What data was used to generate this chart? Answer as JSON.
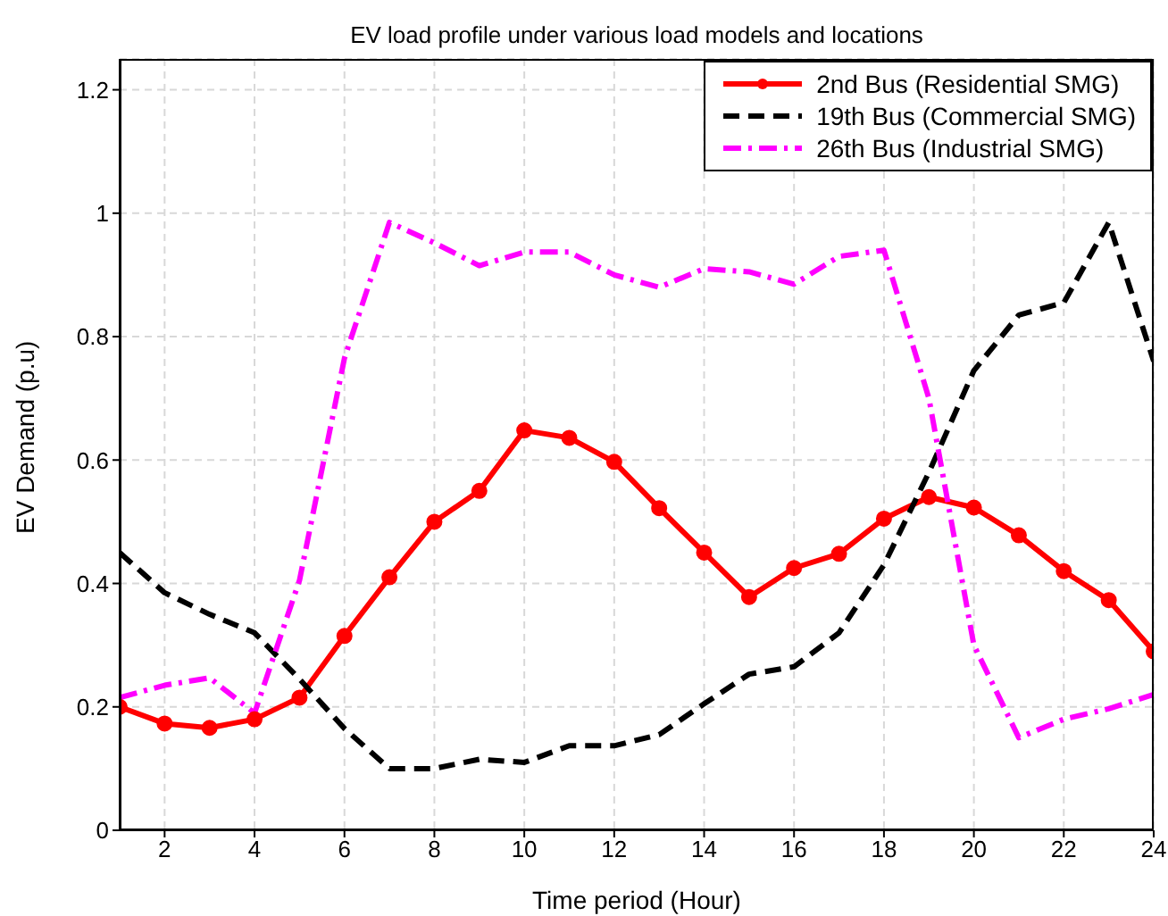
{
  "chart_data": {
    "type": "line",
    "title": "EV load profile under various load models and locations",
    "xlabel": "Time period (Hour)",
    "ylabel": "EV Demand (p.u)",
    "x": [
      1,
      2,
      3,
      4,
      5,
      6,
      7,
      8,
      9,
      10,
      11,
      12,
      13,
      14,
      15,
      16,
      17,
      18,
      19,
      20,
      21,
      22,
      23,
      24
    ],
    "series": [
      {
        "name": "2nd Bus (Residential SMG)",
        "color": "#ff0000",
        "marker": "circle",
        "line_style": "solid",
        "values": [
          0.2,
          0.173,
          0.166,
          0.18,
          0.215,
          0.315,
          0.41,
          0.5,
          0.55,
          0.648,
          0.636,
          0.597,
          0.522,
          0.45,
          0.378,
          0.425,
          0.448,
          0.505,
          0.54,
          0.523,
          0.478,
          0.42,
          0.373,
          0.29
        ]
      },
      {
        "name": "19th Bus (Commercial SMG)",
        "color": "#000000",
        "marker": "none",
        "line_style": "dashed",
        "values": [
          0.45,
          0.385,
          0.35,
          0.32,
          0.245,
          0.165,
          0.1,
          0.1,
          0.115,
          0.11,
          0.137,
          0.137,
          0.155,
          0.205,
          0.253,
          0.265,
          0.32,
          0.43,
          0.58,
          0.745,
          0.835,
          0.855,
          0.985,
          0.76
        ]
      },
      {
        "name": "26th Bus (Industrial SMG)",
        "color": "#ff00ff",
        "marker": "none",
        "line_style": "dashdot",
        "values": [
          0.215,
          0.235,
          0.247,
          0.19,
          0.405,
          0.765,
          0.985,
          0.952,
          0.915,
          0.937,
          0.937,
          0.9,
          0.88,
          0.91,
          0.905,
          0.885,
          0.93,
          0.94,
          0.7,
          0.3,
          0.15,
          0.18,
          0.197,
          0.22
        ]
      }
    ],
    "xlim": [
      1,
      24
    ],
    "xticks": [
      2,
      4,
      6,
      8,
      10,
      12,
      14,
      16,
      18,
      20,
      22,
      24
    ],
    "ylim": [
      0,
      1.25
    ],
    "yticks": [
      0,
      0.2,
      0.4,
      0.6,
      0.8,
      1,
      1.2
    ],
    "grid": true,
    "legend": "top right"
  }
}
